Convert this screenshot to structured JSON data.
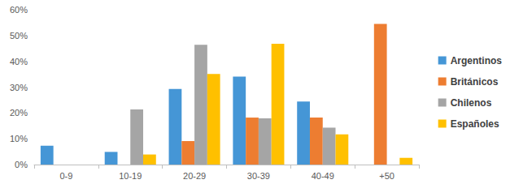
{
  "chart_data": {
    "type": "bar",
    "categories": [
      "0-9",
      "10-19",
      "20-29",
      "30-39",
      "40-49",
      "+50"
    ],
    "series": [
      {
        "name": "Argentinos",
        "color": "#4596d6",
        "values": [
          7.3,
          4.9,
          29.3,
          34.1,
          24.4,
          0
        ]
      },
      {
        "name": "Británicos",
        "color": "#ed7d31",
        "values": [
          0,
          0,
          9.1,
          18.2,
          18.2,
          54.5
        ]
      },
      {
        "name": "Chilenos",
        "color": "#a5a5a5",
        "values": [
          0,
          21.4,
          46.4,
          17.9,
          14.3,
          0
        ]
      },
      {
        "name": "Españoles",
        "color": "#ffc000",
        "values": [
          0,
          3.9,
          35.1,
          46.8,
          11.7,
          2.6
        ]
      }
    ],
    "ylim": [
      0,
      60
    ],
    "yticks": [
      {
        "value": 0,
        "label": "0%"
      },
      {
        "value": 10,
        "label": "10%"
      },
      {
        "value": 20,
        "label": "20%"
      },
      {
        "value": 30,
        "label": "30%"
      },
      {
        "value": 40,
        "label": "40%"
      },
      {
        "value": 50,
        "label": "50%"
      },
      {
        "value": 60,
        "label": "60%"
      }
    ],
    "grid": false,
    "legend": "right"
  }
}
